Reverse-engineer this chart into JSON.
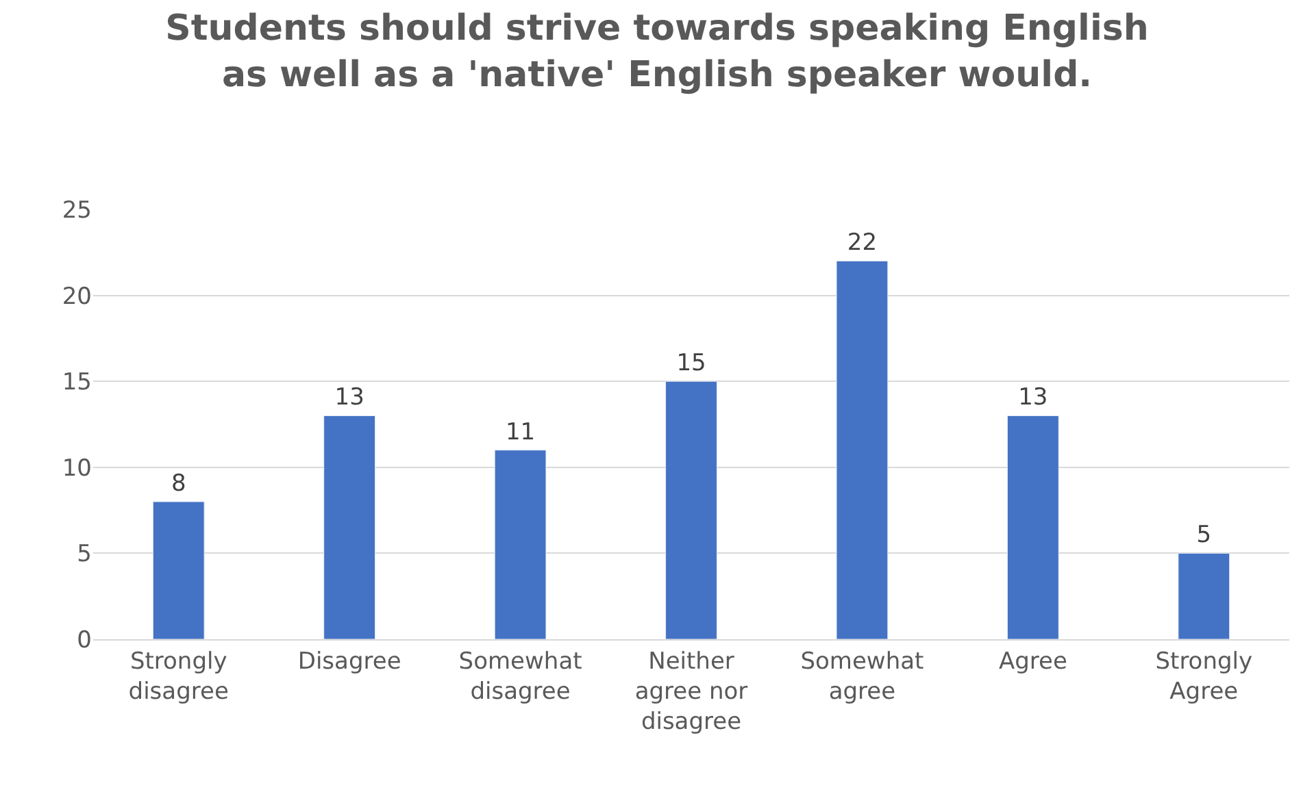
{
  "chart_data": {
    "type": "bar",
    "title": "Students should strive towards speaking English as well as a 'native' English speaker would.",
    "categories": [
      "Strongly disagree",
      "Disagree",
      "Somewhat disagree",
      "Neither agree nor disagree",
      "Somewhat agree",
      "Agree",
      "Strongly Agree"
    ],
    "values": [
      8,
      13,
      11,
      15,
      22,
      13,
      5
    ],
    "color": "#4472c4",
    "ylim": [
      0,
      25
    ],
    "yticks": [
      0,
      5,
      10,
      15,
      20,
      25
    ],
    "grid": "y",
    "data_labels": true,
    "legend": false
  }
}
